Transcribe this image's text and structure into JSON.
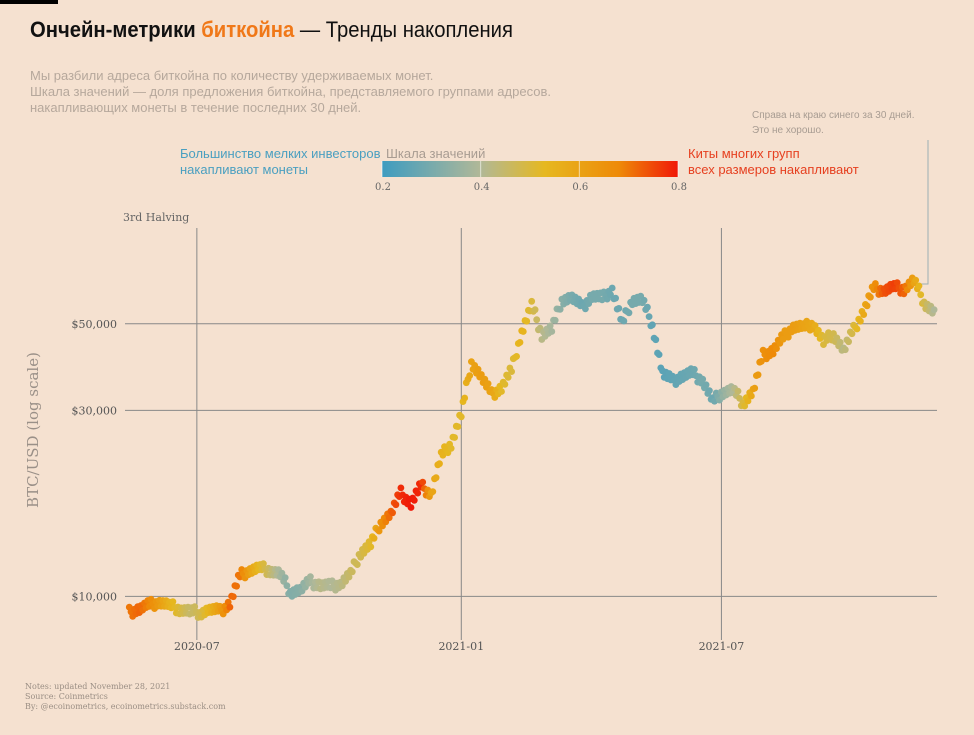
{
  "title": {
    "part1": "Ончейн-метрики",
    "part2": "биткойна",
    "part3": "— Тренды накопления"
  },
  "subtitle": [
    "Мы разбили адреса биткойна по количеству удерживаемых монет.",
    "Шкала значений — доля предложения биткойна, представляемого группами адресов.",
    "накапливающих монеты в течение последних 30 дней."
  ],
  "note_right": [
    "Справа на краю синего за 30 дней.",
    "Это не хорошо."
  ],
  "colorbar": {
    "title": "Шкала значений",
    "left_label": [
      "Большинство мелких инвесторов",
      "накапливают монеты"
    ],
    "right_label": [
      "Киты многих групп",
      "всех размеров накапливают"
    ],
    "ticks": [
      "0.2",
      "0.4",
      "0.6",
      "0.8"
    ],
    "range": [
      0.2,
      0.8
    ],
    "colors": {
      "low": "#3e9cc0",
      "mid": "#e6b820",
      "high": "#f01808"
    }
  },
  "footer": [
    "Notes: updated November 28, 2021",
    "Source: Coinmetrics",
    "By: @ecoinometrics, ecoinometrics.substack.com"
  ],
  "chart_data": {
    "type": "scatter",
    "xlabel": "",
    "ylabel": "BTC/USD (log scale)",
    "yscale": "log",
    "xlim": [
      "2020-05-12",
      "2021-11-28"
    ],
    "ylim": [
      8300,
      88000
    ],
    "x_ticks": [
      "2020-07",
      "2021-01",
      "2021-07"
    ],
    "y_ticks": [
      "$10,000",
      "$30,000",
      "$50,000"
    ],
    "y_tick_values": [
      10000,
      30000,
      50000
    ],
    "annotation": "3rd Halving",
    "grid": true,
    "color_metric": "share of supply accumulating over last 30 days",
    "points": [
      [
        "2020-05-15",
        9100,
        0.7
      ],
      [
        "2020-05-22",
        9300,
        0.72
      ],
      [
        "2020-05-29",
        9500,
        0.68
      ],
      [
        "2020-06-05",
        9700,
        0.62
      ],
      [
        "2020-06-12",
        9450,
        0.55
      ],
      [
        "2020-06-19",
        9300,
        0.5
      ],
      [
        "2020-06-26",
        9150,
        0.45
      ],
      [
        "2020-07-03",
        9100,
        0.48
      ],
      [
        "2020-07-10",
        9250,
        0.55
      ],
      [
        "2020-07-17",
        9150,
        0.62
      ],
      [
        "2020-07-24",
        9600,
        0.72
      ],
      [
        "2020-07-31",
        11300,
        0.7
      ],
      [
        "2020-08-07",
        11700,
        0.6
      ],
      [
        "2020-08-14",
        11800,
        0.52
      ],
      [
        "2020-08-21",
        11700,
        0.45
      ],
      [
        "2020-08-28",
        11400,
        0.38
      ],
      [
        "2020-09-04",
        10300,
        0.32
      ],
      [
        "2020-09-11",
        10400,
        0.33
      ],
      [
        "2020-09-18",
        10900,
        0.38
      ],
      [
        "2020-09-25",
        10700,
        0.42
      ],
      [
        "2020-10-02",
        10600,
        0.4
      ],
      [
        "2020-10-09",
        10800,
        0.42
      ],
      [
        "2020-10-16",
        11400,
        0.46
      ],
      [
        "2020-10-23",
        13000,
        0.48
      ],
      [
        "2020-10-30",
        13600,
        0.52
      ],
      [
        "2020-11-06",
        15500,
        0.66
      ],
      [
        "2020-11-13",
        16300,
        0.72
      ],
      [
        "2020-11-20",
        18400,
        0.78
      ],
      [
        "2020-11-27",
        17300,
        0.8
      ],
      [
        "2020-12-04",
        19200,
        0.78
      ],
      [
        "2020-12-11",
        18300,
        0.6
      ],
      [
        "2020-12-18",
        22900,
        0.55
      ],
      [
        "2020-12-25",
        24700,
        0.52
      ],
      [
        "2021-01-01",
        29300,
        0.52
      ],
      [
        "2021-01-08",
        40000,
        0.6
      ],
      [
        "2021-01-15",
        36500,
        0.62
      ],
      [
        "2021-01-22",
        32900,
        0.6
      ],
      [
        "2021-01-29",
        34300,
        0.52
      ],
      [
        "2021-02-05",
        38000,
        0.5
      ],
      [
        "2021-02-12",
        47600,
        0.55
      ],
      [
        "2021-02-19",
        55800,
        0.5
      ],
      [
        "2021-02-26",
        47000,
        0.42
      ],
      [
        "2021-03-05",
        48500,
        0.38
      ],
      [
        "2021-03-12",
        57800,
        0.33
      ],
      [
        "2021-03-19",
        58400,
        0.3
      ],
      [
        "2021-03-26",
        55000,
        0.28
      ],
      [
        "2021-04-02",
        59000,
        0.3
      ],
      [
        "2021-04-09",
        58000,
        0.3
      ],
      [
        "2021-04-16",
        61300,
        0.28
      ],
      [
        "2021-04-23",
        50000,
        0.28
      ],
      [
        "2021-04-30",
        57700,
        0.3
      ],
      [
        "2021-05-07",
        57500,
        0.3
      ],
      [
        "2021-05-14",
        49700,
        0.26
      ],
      [
        "2021-05-21",
        37300,
        0.25
      ],
      [
        "2021-05-28",
        35600,
        0.26
      ],
      [
        "2021-06-04",
        36800,
        0.27
      ],
      [
        "2021-06-11",
        37300,
        0.28
      ],
      [
        "2021-06-18",
        35800,
        0.3
      ],
      [
        "2021-06-25",
        31600,
        0.28
      ],
      [
        "2021-07-02",
        33500,
        0.35
      ],
      [
        "2021-07-09",
        33800,
        0.4
      ],
      [
        "2021-07-16",
        31400,
        0.5
      ],
      [
        "2021-07-23",
        33500,
        0.6
      ],
      [
        "2021-07-30",
        41500,
        0.66
      ],
      [
        "2021-08-06",
        42800,
        0.68
      ],
      [
        "2021-08-13",
        46000,
        0.62
      ],
      [
        "2021-08-20",
        49300,
        0.62
      ],
      [
        "2021-08-27",
        48900,
        0.6
      ],
      [
        "2021-09-03",
        50000,
        0.58
      ],
      [
        "2021-09-10",
        44900,
        0.5
      ],
      [
        "2021-09-17",
        47200,
        0.48
      ],
      [
        "2021-09-24",
        42700,
        0.42
      ],
      [
        "2021-10-01",
        48100,
        0.5
      ],
      [
        "2021-10-08",
        54000,
        0.58
      ],
      [
        "2021-10-15",
        61600,
        0.66
      ],
      [
        "2021-10-22",
        61000,
        0.74
      ],
      [
        "2021-10-29",
        62000,
        0.76
      ],
      [
        "2021-11-05",
        61500,
        0.72
      ],
      [
        "2021-11-12",
        64600,
        0.6
      ],
      [
        "2021-11-19",
        56900,
        0.48
      ],
      [
        "2021-11-26",
        53500,
        0.4
      ]
    ]
  }
}
